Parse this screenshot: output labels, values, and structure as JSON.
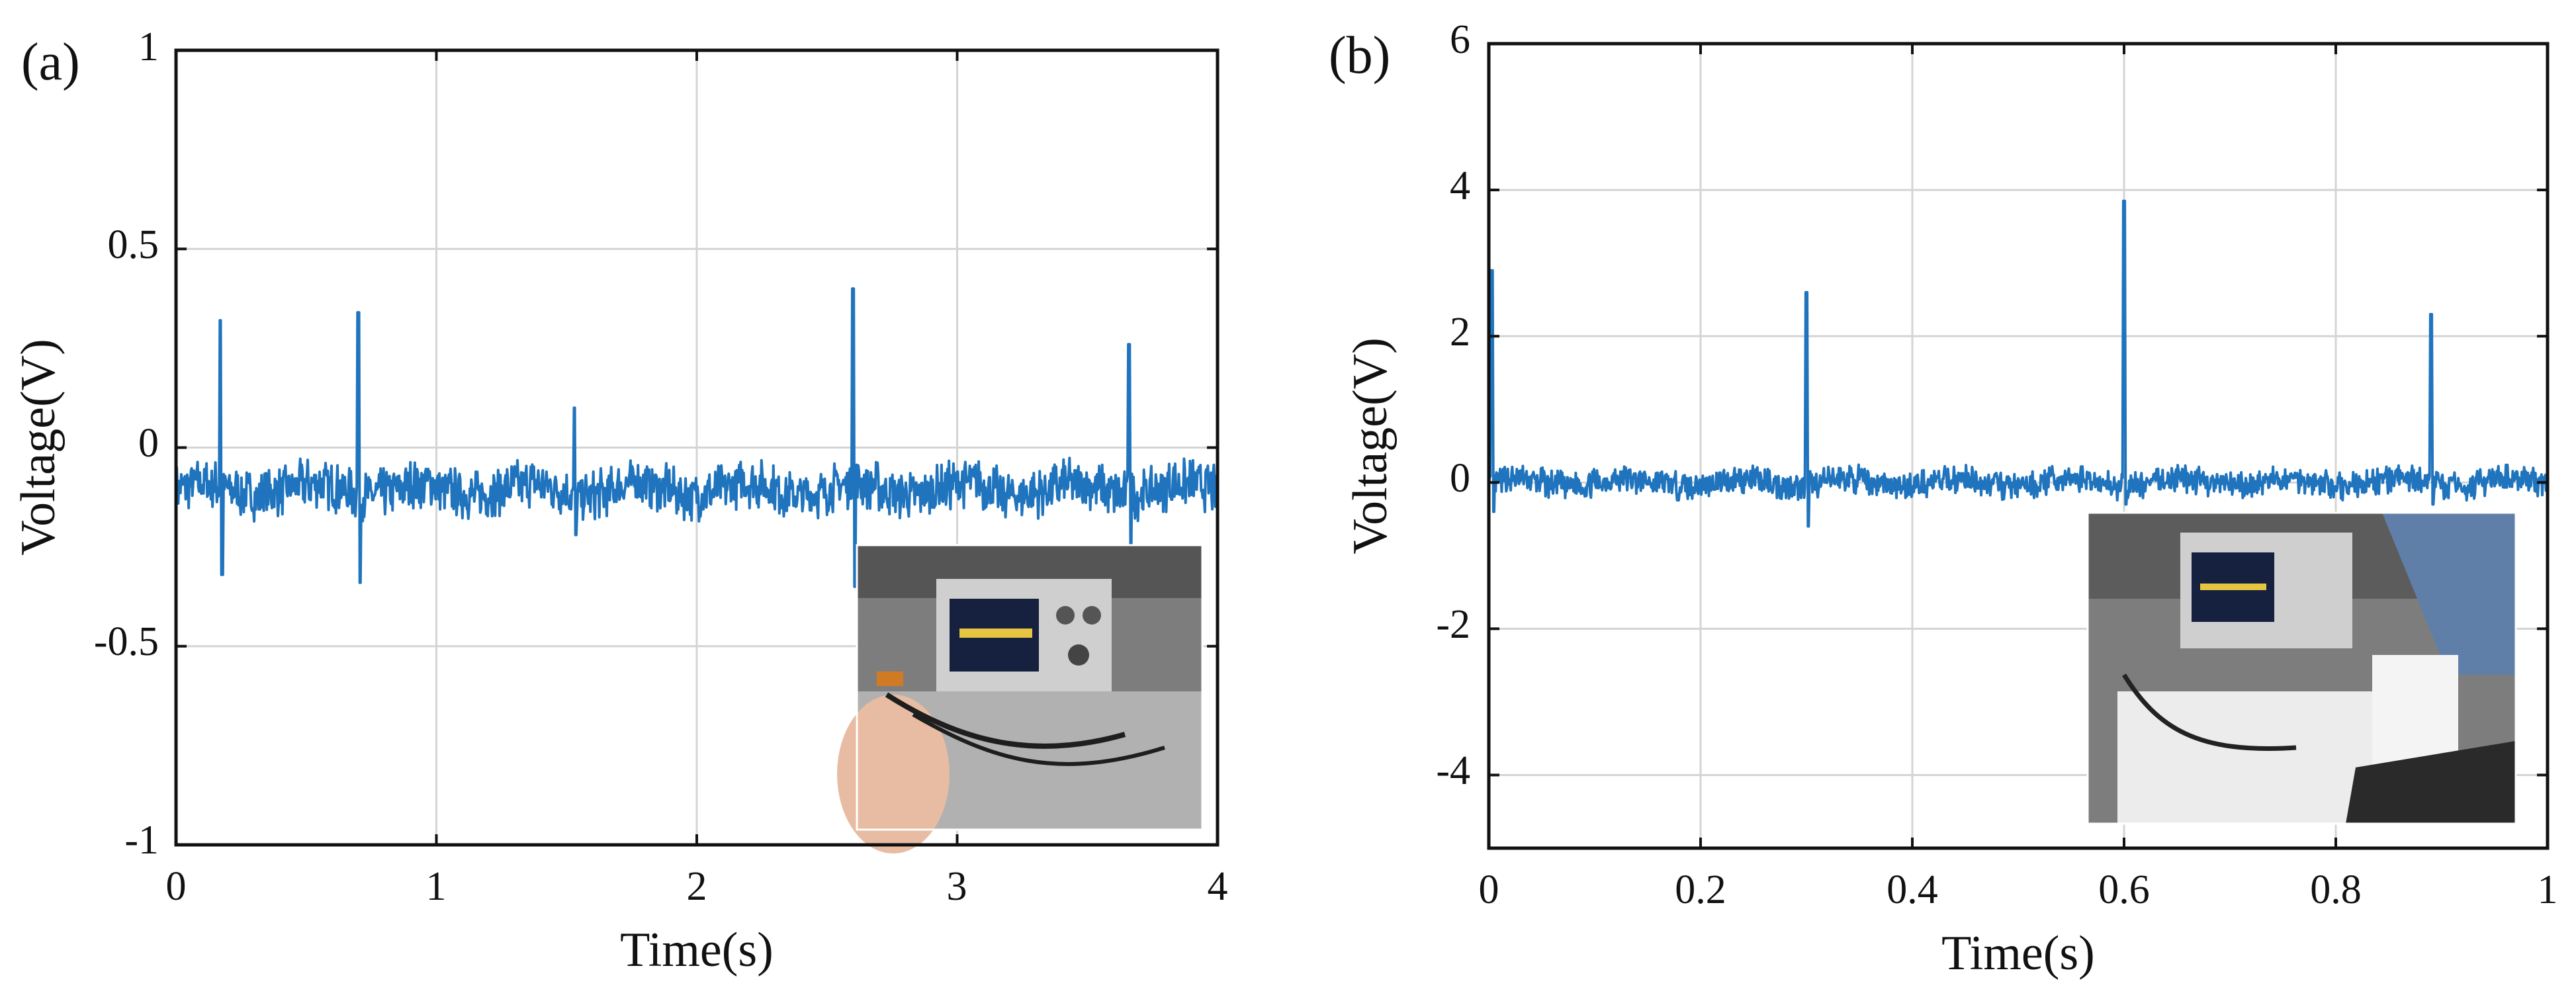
{
  "chart_data": [
    {
      "panel_label": "(a)",
      "type": "line",
      "xlabel": "Time(s)",
      "ylabel": "Voltage(V)",
      "xlim": [
        0,
        4
      ],
      "ylim": [
        -1,
        1
      ],
      "xticks": [
        0,
        1,
        2,
        3,
        4
      ],
      "xtick_labels": [
        "0",
        "1",
        "2",
        "3",
        "4"
      ],
      "yticks": [
        1,
        0.5,
        0,
        -0.5,
        -1
      ],
      "ytick_labels": [
        "1",
        "0.5",
        "0",
        "-0.5",
        "-1"
      ],
      "grid": true,
      "baseline": -0.1,
      "noise_band": [
        -0.17,
        -0.04
      ],
      "spikes": [
        {
          "t": 0.17,
          "peak": 0.32,
          "trough": -0.32
        },
        {
          "t": 0.7,
          "peak": 0.34,
          "trough": -0.34
        },
        {
          "t": 1.53,
          "peak": 0.1,
          "trough": -0.22
        },
        {
          "t": 2.6,
          "peak": 0.4,
          "trough": -0.35
        },
        {
          "t": 3.66,
          "peak": 0.26,
          "trough": -0.25
        }
      ],
      "series": [
        {
          "name": "Voltage",
          "color": "#1f74bd"
        }
      ],
      "inset": "photo of oscilloscope measurement setup"
    },
    {
      "panel_label": "(b)",
      "type": "line",
      "xlabel": "Time(s)",
      "ylabel": "Voltage(V)",
      "xlim": [
        0,
        1
      ],
      "ylim": [
        -5,
        6
      ],
      "xticks": [
        0,
        0.2,
        0.4,
        0.6,
        0.8,
        1
      ],
      "xtick_labels": [
        "0",
        "0.2",
        "0.4",
        "0.6",
        "0.8",
        "1"
      ],
      "yticks": [
        6,
        4,
        2,
        0,
        -2,
        -4
      ],
      "ytick_labels": [
        "6",
        "4",
        "2",
        "0",
        "-2",
        "-4"
      ],
      "grid": true,
      "baseline": 0,
      "noise_band": [
        -0.2,
        0.2
      ],
      "spikes": [
        {
          "t": 0.003,
          "peak": 2.9,
          "trough": -0.4
        },
        {
          "t": 0.3,
          "peak": 2.6,
          "trough": -0.6
        },
        {
          "t": 0.6,
          "peak": 3.85,
          "trough": -0.3
        },
        {
          "t": 0.89,
          "peak": 2.3,
          "trough": -0.3
        }
      ],
      "series": [
        {
          "name": "Voltage",
          "color": "#1f74bd"
        }
      ],
      "inset": "photo of foot pressing sensor connected to oscilloscope"
    }
  ]
}
